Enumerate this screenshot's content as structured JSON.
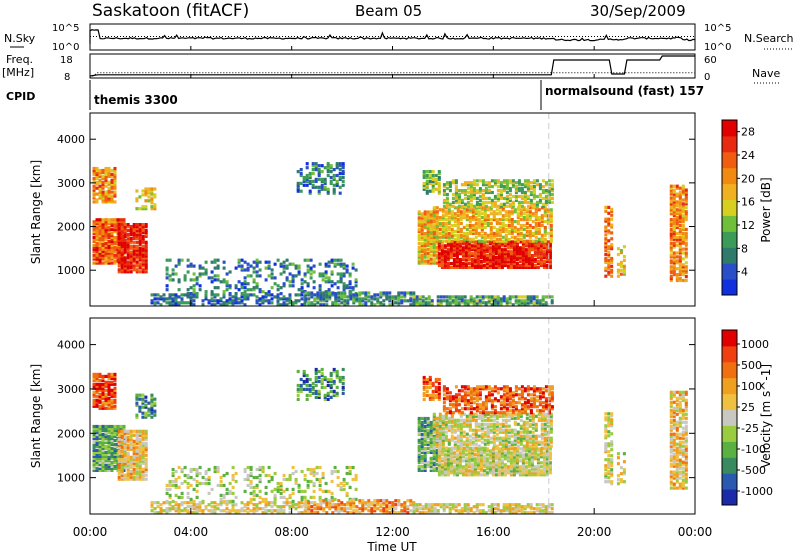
{
  "header": {
    "station": "Saskatoon (fitACF)",
    "beam": "Beam 05",
    "date": "30/Sep/2009"
  },
  "side_labels": {
    "nsky": "N.Sky",
    "freq": "Freq.",
    "mhz": "[MHz]",
    "cpid": "CPID",
    "nsearch": "N.Search",
    "nave": "Nave"
  },
  "noise_axis": {
    "left_top": "10^5",
    "left_bottom": "10^0",
    "right_top": "10^5",
    "right_bottom": "10^0"
  },
  "freq_axis": {
    "left_top": "18",
    "left_bottom": "8",
    "right_top": "60",
    "right_bottom": "0"
  },
  "cpid": {
    "first": "themis 3300",
    "second": "normalsound (fast) 157"
  },
  "colors": {
    "power": [
      "#1030e0",
      "#2a4ec8",
      "#2f7a6a",
      "#3d9b5a",
      "#6fbf3a",
      "#d8d020",
      "#f0b020",
      "#f08a10",
      "#f05c10",
      "#e82a10",
      "#e00000"
    ],
    "velocity": [
      "#1a2aa8",
      "#2a5ab0",
      "#3a8a60",
      "#5ab040",
      "#9acc40",
      "#c8c8c0",
      "#f0c040",
      "#f0a020",
      "#f07010",
      "#f04010",
      "#e00000"
    ]
  },
  "chart_data": [
    {
      "type": "line",
      "title": "N.Sky / N.Search",
      "x": [
        0,
        1,
        2,
        4,
        6,
        8,
        10,
        12,
        14,
        16,
        18,
        18.5,
        20,
        21,
        22,
        24
      ],
      "series": [
        {
          "name": "N.Sky",
          "values": [
            3.6,
            2.4,
            2.0,
            2.0,
            2.1,
            2.1,
            2.2,
            2.2,
            2.3,
            2.2,
            2.1,
            1.8,
            1.9,
            2.0,
            2.2,
            1.8
          ]
        },
        {
          "name": "N.Search",
          "values": [
            2.6,
            2.6,
            2.6,
            2.6,
            2.6,
            2.6,
            2.6,
            2.6,
            2.6,
            2.6,
            2.6,
            2.6,
            2.6,
            2.6,
            2.6,
            2.6
          ]
        }
      ],
      "yscale": "log"
    },
    {
      "type": "line",
      "title": "Freq. / Nave",
      "x": [
        0,
        0.3,
        4,
        8,
        12,
        16,
        18.3,
        18.4,
        20.6,
        20.7,
        21.2,
        21.3,
        22.6,
        22.7,
        24
      ],
      "series": [
        {
          "name": "Freq.",
          "values": [
            8,
            10,
            10,
            10,
            10,
            10,
            10,
            10,
            10,
            10,
            10,
            10,
            10,
            10,
            10
          ]
        },
        {
          "name": "Nave",
          "values": [
            5,
            8,
            8,
            8,
            8,
            8,
            8,
            45,
            45,
            10,
            10,
            45,
            45,
            55,
            55
          ]
        }
      ],
      "yrange_freq": [
        8,
        18
      ],
      "yrange_nave": [
        0,
        60
      ]
    },
    {
      "type": "heatmap",
      "title": "Power",
      "xlabel": "",
      "ylabel": "Slant Range [km]",
      "xrange": [
        0,
        24
      ],
      "ylim": [
        180,
        4600
      ],
      "yticks": [
        1000,
        2000,
        3000,
        4000
      ],
      "colorbar_label": "Power [dB]",
      "colorbar_ticks": [
        4,
        8,
        12,
        16,
        20,
        24,
        28
      ],
      "colorbar_range": [
        0,
        30
      ]
    },
    {
      "type": "heatmap",
      "title": "Velocity",
      "xlabel": "Time UT",
      "ylabel": "Slant Range [km]",
      "xrange": [
        0,
        24
      ],
      "ylim": [
        180,
        4600
      ],
      "yticks": [
        1000,
        2000,
        3000,
        4000
      ],
      "xticks": [
        "00:00",
        "04:00",
        "08:00",
        "12:00",
        "16:00",
        "20:00",
        "00:00"
      ],
      "colorbar_label": "Velocity [m s^-1]",
      "colorbar_ticks": [
        "1000",
        "500",
        "100",
        "25",
        "-25",
        "-100",
        "-500",
        "-1000"
      ]
    }
  ]
}
